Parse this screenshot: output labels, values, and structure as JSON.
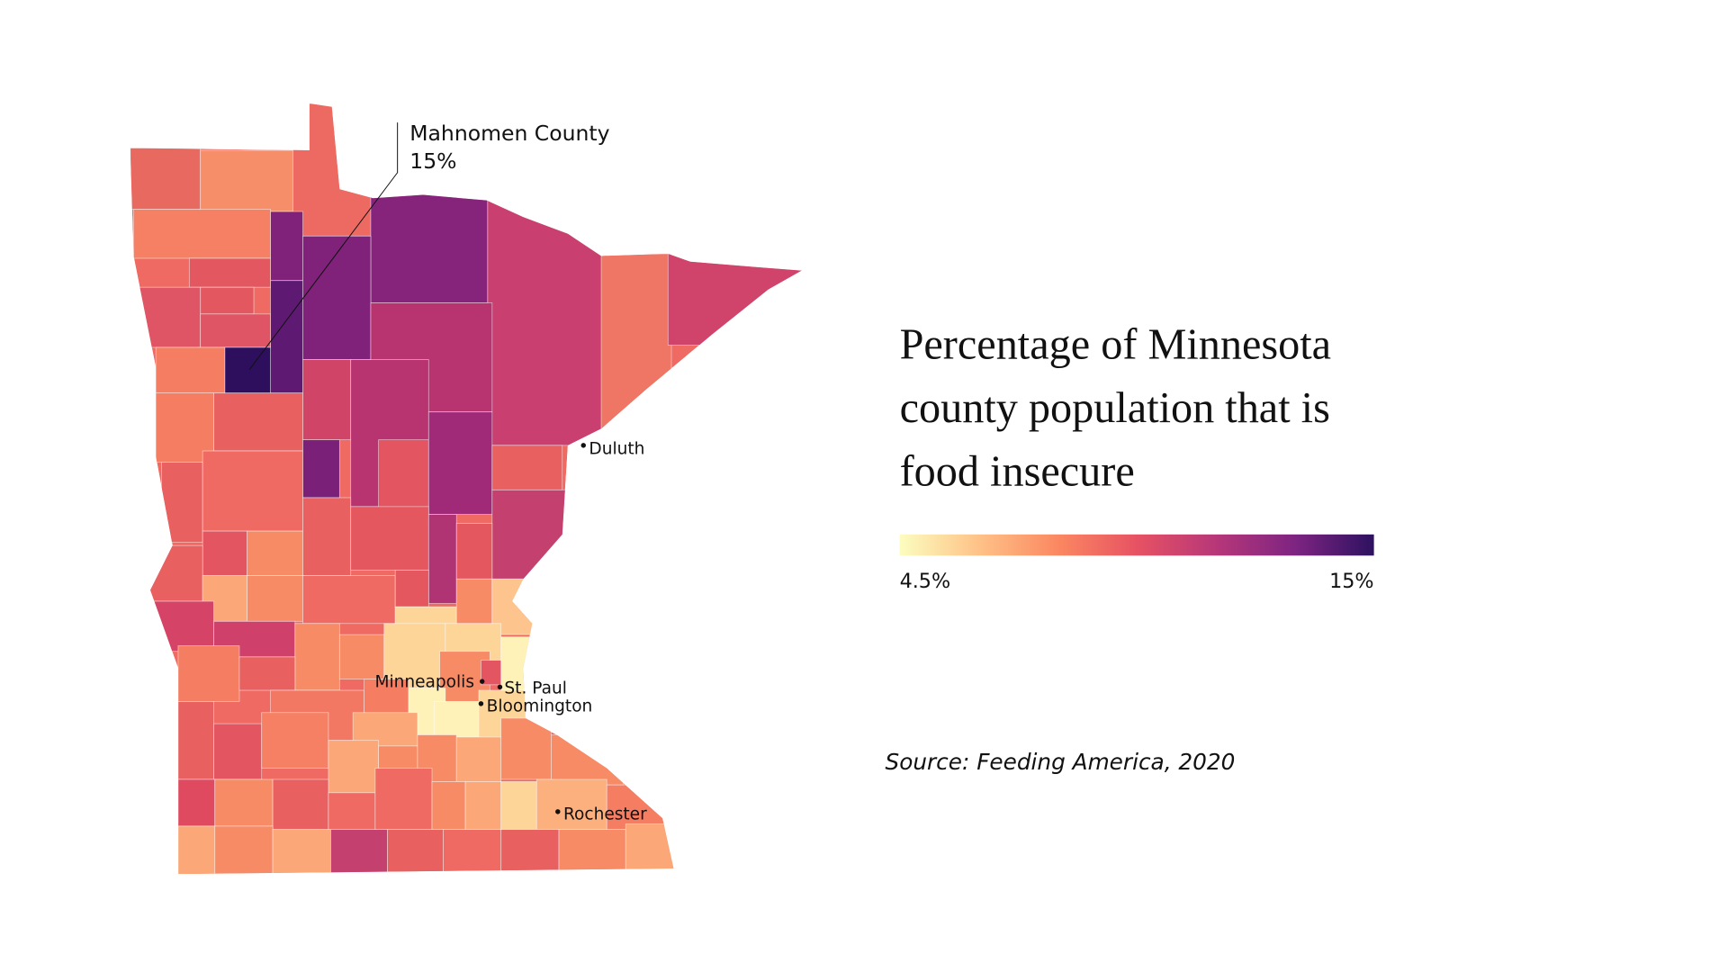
{
  "title_lines": [
    "Percentage of Minnesota",
    "county population that is",
    "food insecure"
  ],
  "source": "Source: Feeding America, 2020",
  "legend": {
    "min_label": "4.5%",
    "max_label": "15%",
    "min_value": 4.5,
    "max_value": 15,
    "colors": [
      "#fcfdbf",
      "#fec287",
      "#fb8861",
      "#e75263",
      "#b73779",
      "#7e2482",
      "#2d1160"
    ]
  },
  "annotation": {
    "name": "Mahnomen County",
    "value_label": "15%",
    "value": 15
  },
  "cities": [
    {
      "name": "Duluth"
    },
    {
      "name": "Minneapolis"
    },
    {
      "name": "St. Paul"
    },
    {
      "name": "Bloomington"
    },
    {
      "name": "Rochester"
    }
  ]
}
